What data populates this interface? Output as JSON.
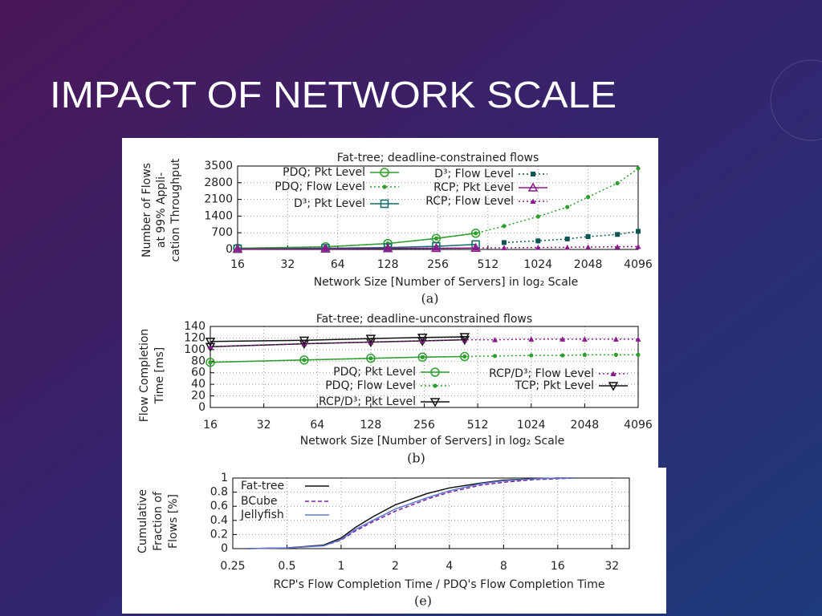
{
  "slide": {
    "title": "IMPACT OF NETWORK SCALE"
  },
  "chart_data": [
    {
      "type": "line",
      "title": "Fat-tree; deadline-constrained flows",
      "ylabel": [
        "Number of Flows",
        "at 99% Appli-",
        "cation Throughput"
      ],
      "xlabel": "Network Size [Number of Servers] in log₂ Scale",
      "caption": "(a)",
      "xscale": "log2",
      "xlim": [
        16,
        4096
      ],
      "xticks": [
        16,
        32,
        64,
        128,
        256,
        512,
        1024,
        2048,
        4096
      ],
      "ylim": [
        0,
        3500
      ],
      "yticks": [
        0,
        700,
        1400,
        2100,
        2800,
        3500
      ],
      "grid": true,
      "x": [
        16,
        54,
        128,
        250,
        432,
        640,
        1024,
        1536,
        2048,
        3072,
        4096
      ],
      "series": [
        {
          "name": "PDQ; Pkt Level",
          "color": "#2e9e2e",
          "marker": "circle",
          "line": "solid",
          "values": [
            50,
            110,
            250,
            460,
            680,
            null,
            null,
            null,
            null,
            null,
            null
          ]
        },
        {
          "name": "PDQ; Flow Level",
          "color": "#2e9e2e",
          "marker": "dot",
          "line": "dotted",
          "values": [
            50,
            110,
            250,
            460,
            680,
            980,
            1380,
            1780,
            2200,
            2780,
            3400
          ]
        },
        {
          "name": "D³; Pkt Level",
          "color": "#0d6b6b",
          "marker": "square",
          "line": "solid",
          "values": [
            30,
            50,
            80,
            130,
            210,
            null,
            null,
            null,
            null,
            null,
            null
          ]
        },
        {
          "name": "D³; Flow Level",
          "color": "#0d5555",
          "marker": "square-filled",
          "line": "dotted",
          "values": [
            null,
            null,
            null,
            null,
            null,
            290,
            360,
            440,
            540,
            630,
            760
          ]
        },
        {
          "name": "RCP; Pkt Level",
          "color": "#8b1a8b",
          "marker": "triangle",
          "line": "solid",
          "values": [
            20,
            30,
            40,
            50,
            60,
            null,
            null,
            null,
            null,
            null,
            null
          ]
        },
        {
          "name": "RCP; Flow Level",
          "color": "#8b1a8b",
          "marker": "triangle-filled",
          "line": "dotted",
          "values": [
            20,
            30,
            40,
            50,
            60,
            70,
            80,
            90,
            100,
            110,
            120
          ]
        }
      ]
    },
    {
      "type": "line",
      "title": "Fat-tree; deadline-unconstrained flows",
      "ylabel": [
        "Flow Completion",
        "Time [ms]"
      ],
      "xlabel": "Network Size [Number of Servers] in log₂ Scale",
      "caption": "(b)",
      "xscale": "log2",
      "xlim": [
        16,
        4096
      ],
      "xticks": [
        16,
        32,
        64,
        128,
        256,
        512,
        1024,
        2048,
        4096
      ],
      "ylim": [
        0,
        140
      ],
      "yticks": [
        0,
        20,
        40,
        60,
        80,
        100,
        120,
        140
      ],
      "grid": true,
      "x": [
        16,
        54,
        128,
        250,
        432,
        640,
        1024,
        1536,
        2048,
        3072,
        4096
      ],
      "series": [
        {
          "name": "PDQ; Pkt Level",
          "color": "#2e9e2e",
          "marker": "circle",
          "line": "solid",
          "values": [
            78,
            82,
            85,
            87,
            88,
            null,
            null,
            null,
            null,
            null,
            null
          ]
        },
        {
          "name": "PDQ; Flow Level",
          "color": "#2e9e2e",
          "marker": "dot",
          "line": "dotted",
          "values": [
            78,
            82,
            85,
            87,
            88,
            89,
            90,
            90,
            91,
            91,
            91
          ]
        },
        {
          "name": "RCP/D³; Pkt Level",
          "color": "#111111",
          "marker": "triangle-down",
          "line": "solid",
          "values": [
            105,
            110,
            113,
            115,
            117,
            null,
            null,
            null,
            null,
            null,
            null
          ]
        },
        {
          "name": "RCP/D³; Flow Level",
          "color": "#8b1a8b",
          "marker": "triangle-filled",
          "line": "dotted",
          "values": [
            105,
            110,
            113,
            115,
            117,
            117,
            118,
            118,
            118,
            118,
            118
          ]
        },
        {
          "name": "TCP; Pkt Level",
          "color": "#111111",
          "marker": "triangle-down",
          "line": "solid",
          "values": [
            114,
            116,
            119,
            121,
            122,
            null,
            null,
            null,
            null,
            null,
            null
          ]
        }
      ]
    },
    {
      "type": "line",
      "ylabel": [
        "Cumulative",
        "Fraction of",
        "Flows [%]"
      ],
      "xlabel": "RCP's Flow Completion Time / PDQ's Flow Completion Time",
      "caption": "(e)",
      "xscale": "log2",
      "xlim": [
        0.25,
        40
      ],
      "xticks": [
        0.25,
        0.5,
        1,
        2,
        4,
        8,
        16,
        32
      ],
      "ylim": [
        0,
        1
      ],
      "yticks": [
        0,
        0.2,
        0.4,
        0.6,
        0.8,
        1
      ],
      "grid": true,
      "x": [
        0.3,
        0.5,
        0.8,
        1,
        1.2,
        1.5,
        2,
        3,
        4,
        6,
        8,
        12,
        16,
        20
      ],
      "series": [
        {
          "name": "Fat-tree",
          "color": "#111111",
          "marker": "none",
          "line": "solid",
          "values": [
            0,
            0.01,
            0.05,
            0.15,
            0.3,
            0.45,
            0.62,
            0.78,
            0.86,
            0.93,
            0.97,
            0.99,
            1,
            1
          ]
        },
        {
          "name": "BCube",
          "color": "#7a1fa2",
          "marker": "none",
          "line": "dashed",
          "values": [
            0,
            0.01,
            0.04,
            0.12,
            0.25,
            0.38,
            0.53,
            0.7,
            0.8,
            0.9,
            0.94,
            0.98,
            0.99,
            1
          ]
        },
        {
          "name": "Jellyfish",
          "color": "#5f78d0",
          "marker": "none",
          "line": "solid",
          "values": [
            0,
            0.01,
            0.04,
            0.13,
            0.27,
            0.4,
            0.56,
            0.72,
            0.82,
            0.92,
            0.96,
            0.99,
            1,
            1
          ]
        }
      ]
    }
  ]
}
